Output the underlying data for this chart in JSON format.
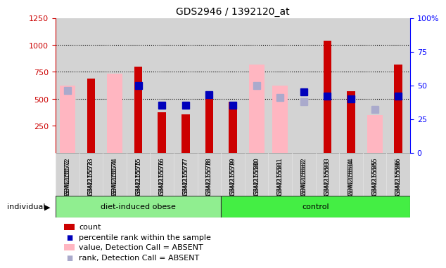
{
  "title": "GDS2946 / 1392120_at",
  "samples": [
    "GSM215572",
    "GSM215573",
    "GSM215574",
    "GSM215575",
    "GSM215576",
    "GSM215577",
    "GSM215578",
    "GSM215579",
    "GSM215580",
    "GSM215581",
    "GSM215582",
    "GSM215583",
    "GSM215584",
    "GSM215585",
    "GSM215586"
  ],
  "count": [
    null,
    690,
    null,
    800,
    375,
    355,
    530,
    470,
    null,
    null,
    null,
    1040,
    570,
    null,
    820
  ],
  "percentile_rank_pct": [
    null,
    null,
    null,
    50,
    35,
    35,
    43,
    35,
    null,
    null,
    45,
    42,
    40,
    null,
    42
  ],
  "absent_value": [
    620,
    null,
    730,
    null,
    null,
    null,
    null,
    null,
    820,
    620,
    null,
    null,
    null,
    350,
    null
  ],
  "absent_rank_pct": [
    46,
    null,
    null,
    null,
    null,
    null,
    null,
    null,
    50,
    41,
    38,
    null,
    null,
    32,
    null
  ],
  "ylim_left": [
    0,
    1250
  ],
  "ylim_right": [
    0,
    100
  ],
  "yticks_left": [
    250,
    500,
    750,
    1000,
    1250
  ],
  "yticks_right": [
    0,
    25,
    50,
    75,
    100
  ],
  "bar_color_count": "#CC0000",
  "bar_color_absent_value": "#FFB6C1",
  "dot_color_percentile": "#0000BB",
  "dot_color_absent_rank": "#AAAACC",
  "background_color": "#D3D3D3",
  "group1_color": "#90EE90",
  "group2_color": "#44EE44",
  "n_group1": 7,
  "n_group2": 8,
  "group1_label": "diet-induced obese",
  "group2_label": "control"
}
